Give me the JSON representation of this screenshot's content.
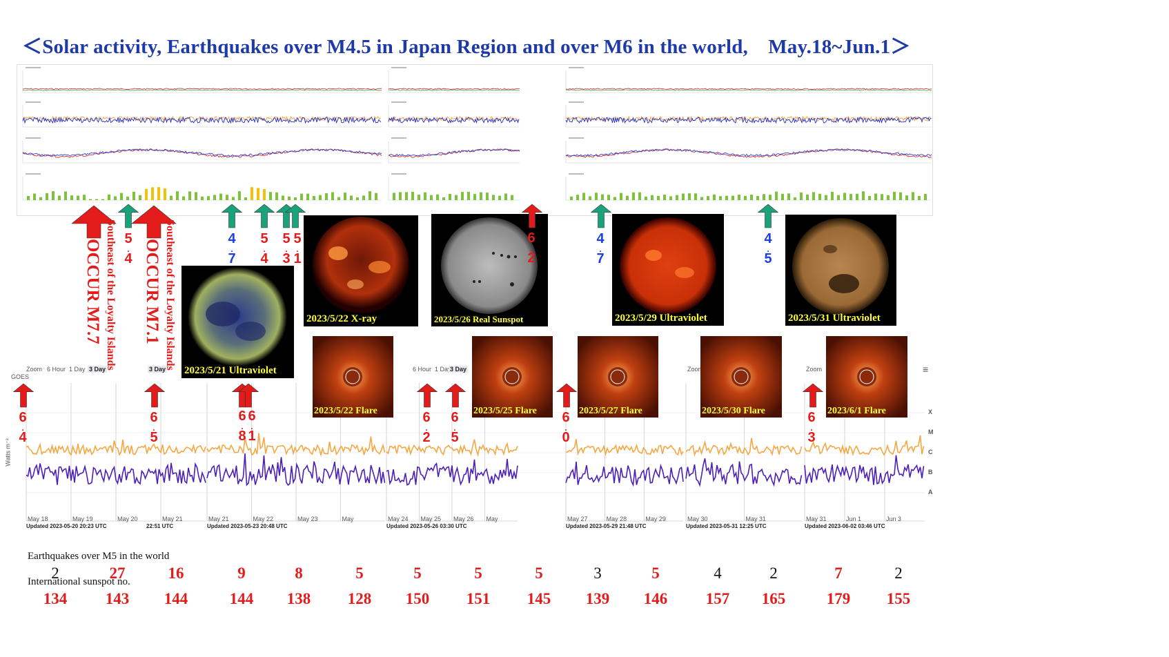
{
  "title": "＜Solar activity, Earthquakes over M4.5 in Japan Region and over M6 in the world,　May.18~Jun.1＞",
  "photos": [
    {
      "caption": "2023/5/21 Ultraviolet",
      "kind": "uv-blue"
    },
    {
      "caption": "2023/5/22 X-ray",
      "kind": "xray"
    },
    {
      "caption": "2023/5/26 Real Sunspot",
      "kind": "sunspot"
    },
    {
      "caption": "2023/5/29 Ultraviolet",
      "kind": "uv-red"
    },
    {
      "caption": "2023/5/31 Ultraviolet",
      "kind": "uv-gold"
    }
  ],
  "flares": [
    {
      "caption": "2023/5/22 Flare"
    },
    {
      "caption": "2023/5/25 Flare"
    },
    {
      "caption": "2023/5/27 Flare"
    },
    {
      "caption": "2023/5/30 Flare"
    },
    {
      "caption": "2023/6/1 Flare"
    }
  ],
  "occur_labels": [
    {
      "big": "OCCUR M7.7",
      "small": "Southeast of the Loyalty Islands"
    },
    {
      "big": "OCCUR M7.1",
      "small": "Southeast of the Loyalty Islands"
    }
  ],
  "upper_magnitudes": [
    "5.4",
    "4.7",
    "5.4",
    "5.3",
    "5.1",
    "6.2",
    "4.7",
    "4.5"
  ],
  "lower_magnitudes": [
    "6.4",
    "6.5",
    "6.8",
    "6.1",
    "6.2",
    "6.5",
    "6.0",
    "6.3"
  ],
  "goes_chart": {
    "zoom_label": "Zoom",
    "zoom_options": [
      "6 Hour",
      "1 Day",
      "3 Day"
    ],
    "y_axis_label": "Watts m⁻²",
    "flux_classes": [
      "X",
      "M",
      "C",
      "B",
      "A"
    ],
    "menu_icon": "hamburger-icon",
    "panels": [
      {
        "x_ticks": [
          "May 18",
          "May 19",
          "May 20",
          "May 21"
        ],
        "updated": "Updated 2023-05-20 20:23 UTC",
        "extra": "22:51 UTC"
      },
      {
        "x_ticks": [
          "May 21",
          "May 22",
          "May 23",
          "May"
        ],
        "updated": "Updated 2023-05-23 20:48 UTC",
        "extra": ""
      },
      {
        "x_ticks": [
          "May 24",
          "May 25",
          "May 26",
          "May"
        ],
        "updated": "Updated 2023-05-26 03:30 UTC",
        "extra": ""
      },
      {
        "x_ticks": [
          "May 27",
          "May 28",
          "May 29"
        ],
        "updated": "Updated 2023-05-29 21:48 UTC",
        "extra": ""
      },
      {
        "x_ticks": [
          "May 30",
          "May 31"
        ],
        "updated": "Updated 2023-05-31 12:25 UTC",
        "extra": ""
      },
      {
        "x_ticks": [
          "May 31",
          "Jun 1",
          "Jun 3"
        ],
        "updated": "Updated 2023-06-02 03:46 UTC",
        "extra": ""
      }
    ]
  },
  "tables": {
    "earthquakes_label": "Earthquakes over M5 in the world",
    "sunspot_label": "International sunspot no.",
    "earthquakes": [
      "2",
      "27",
      "16",
      "9",
      "8",
      "5",
      "5",
      "5",
      "5",
      "3",
      "5",
      "4",
      "2",
      "7",
      "2"
    ],
    "sunspots": [
      "134",
      "143",
      "144",
      "144",
      "138",
      "128",
      "150",
      "151",
      "145",
      "139",
      "146",
      "157",
      "165",
      "179",
      "155"
    ]
  },
  "colors": {
    "title": "#1f3aa6",
    "red": "#e31b1b",
    "blue": "#1b3fe3",
    "teal_arrow": "#1aa37a",
    "xray_long": "#f5a742",
    "xray_short": "#4b1fb8",
    "caption": "#ffff33"
  },
  "chart_data": {
    "type": "line",
    "title": "",
    "xlabel": "",
    "ylabel": "Watts m⁻²",
    "yscale": "log",
    "ylim": [
      1e-09,
      0.001
    ],
    "x_range": [
      "May 18",
      "Jun 3"
    ],
    "series": [
      {
        "values_approx_class": [
          "C",
          "C",
          "C",
          "C",
          "C",
          "C",
          "C",
          "C",
          "C",
          "C",
          "C",
          "C",
          "C",
          "C",
          "C"
        ]
      },
      {
        "values_approx_class": [
          "B",
          "B",
          "B",
          "B",
          "B",
          "B",
          "B",
          "B",
          "B",
          "B",
          "B",
          "B",
          "B",
          "B",
          "B"
        ]
      }
    ]
  }
}
